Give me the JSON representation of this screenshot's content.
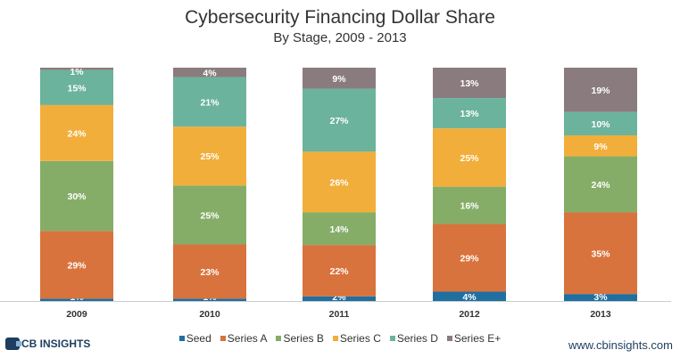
{
  "chart_data": {
    "type": "bar",
    "stacked": true,
    "title": "Cybersecurity Financing Dollar Share",
    "subtitle": "By Stage, 2009 - 2013",
    "categories": [
      "2009",
      "2010",
      "2011",
      "2012",
      "2013"
    ],
    "series": [
      {
        "name": "Seed",
        "color": "#1f6fa0",
        "values": [
          1,
          1,
          2,
          4,
          3
        ]
      },
      {
        "name": "Series A",
        "color": "#d9733d",
        "values": [
          29,
          23,
          22,
          29,
          35
        ]
      },
      {
        "name": "Series B",
        "color": "#86ad68",
        "values": [
          30,
          25,
          14,
          16,
          24
        ]
      },
      {
        "name": "Series C",
        "color": "#f2ae3a",
        "values": [
          24,
          25,
          26,
          25,
          9
        ]
      },
      {
        "name": "Series D",
        "color": "#6bb39c",
        "values": [
          15,
          21,
          27,
          13,
          10
        ]
      },
      {
        "name": "Series E+",
        "color": "#8a7c7e",
        "values": [
          1,
          4,
          9,
          13,
          19
        ]
      }
    ],
    "unit": "%",
    "ylim": [
      0,
      100
    ],
    "grid": false,
    "legend": "bottom"
  },
  "footer": {
    "logo": "CB INSIGHTS",
    "url": "www.cbinsights.com"
  }
}
